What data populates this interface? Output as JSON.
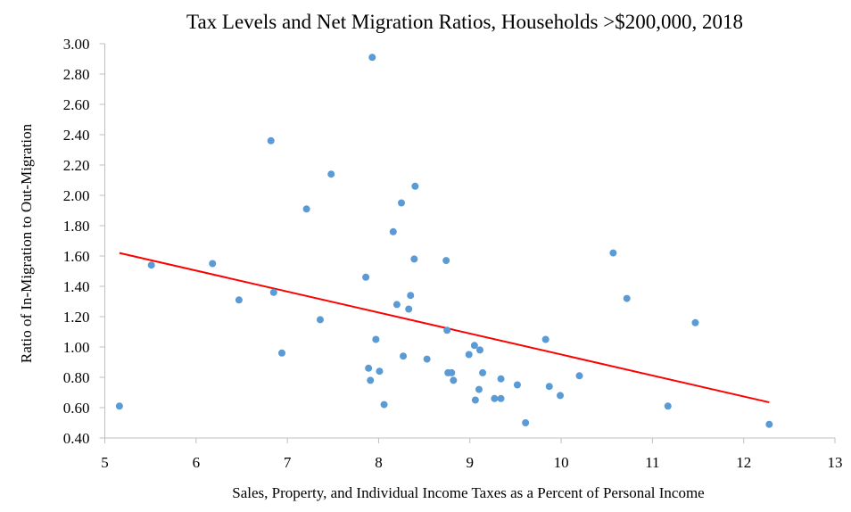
{
  "chart_data": {
    "type": "scatter",
    "title": "Tax Levels and Net Migration Ratios, Households >$200,000, 2018",
    "xlabel": "Sales, Property, and Individual Income Taxes as a Percent of Personal Income",
    "ylabel": "Ratio of In-Migration to Out-Migration",
    "xlim": [
      5,
      13
    ],
    "ylim": [
      0.4,
      3.0
    ],
    "x_ticks": [
      "5",
      "6",
      "7",
      "8",
      "9",
      "10",
      "11",
      "12",
      "13"
    ],
    "y_ticks": [
      "0.40",
      "0.60",
      "0.80",
      "1.00",
      "1.20",
      "1.40",
      "1.60",
      "1.80",
      "2.00",
      "2.20",
      "2.40",
      "2.60",
      "2.80",
      "3.00"
    ],
    "grid": false,
    "legend": "none",
    "colors": {
      "points": "#5B9BD5",
      "trendline": "#FF0000",
      "axis": "#BFBFBF"
    },
    "points": [
      {
        "x": 5.16,
        "y": 0.61
      },
      {
        "x": 5.51,
        "y": 1.54
      },
      {
        "x": 6.18,
        "y": 1.55
      },
      {
        "x": 6.47,
        "y": 1.31
      },
      {
        "x": 6.82,
        "y": 2.36
      },
      {
        "x": 6.85,
        "y": 1.36
      },
      {
        "x": 6.94,
        "y": 0.96
      },
      {
        "x": 7.21,
        "y": 1.91
      },
      {
        "x": 7.36,
        "y": 1.18
      },
      {
        "x": 7.48,
        "y": 2.14
      },
      {
        "x": 7.86,
        "y": 1.46
      },
      {
        "x": 7.89,
        "y": 0.86
      },
      {
        "x": 7.91,
        "y": 0.78
      },
      {
        "x": 7.93,
        "y": 2.91
      },
      {
        "x": 7.97,
        "y": 1.05
      },
      {
        "x": 8.01,
        "y": 0.84
      },
      {
        "x": 8.06,
        "y": 0.62
      },
      {
        "x": 8.16,
        "y": 1.76
      },
      {
        "x": 8.2,
        "y": 1.28
      },
      {
        "x": 8.25,
        "y": 1.95
      },
      {
        "x": 8.27,
        "y": 0.94
      },
      {
        "x": 8.33,
        "y": 1.25
      },
      {
        "x": 8.35,
        "y": 1.34
      },
      {
        "x": 8.39,
        "y": 1.58
      },
      {
        "x": 8.4,
        "y": 2.06
      },
      {
        "x": 8.53,
        "y": 0.92
      },
      {
        "x": 8.74,
        "y": 1.57
      },
      {
        "x": 8.75,
        "y": 1.11
      },
      {
        "x": 8.76,
        "y": 0.83
      },
      {
        "x": 8.8,
        "y": 0.83
      },
      {
        "x": 8.82,
        "y": 0.78
      },
      {
        "x": 8.99,
        "y": 0.95
      },
      {
        "x": 9.05,
        "y": 1.01
      },
      {
        "x": 9.06,
        "y": 0.65
      },
      {
        "x": 9.1,
        "y": 0.72
      },
      {
        "x": 9.11,
        "y": 0.98
      },
      {
        "x": 9.14,
        "y": 0.83
      },
      {
        "x": 9.27,
        "y": 0.66
      },
      {
        "x": 9.34,
        "y": 0.66
      },
      {
        "x": 9.34,
        "y": 0.79
      },
      {
        "x": 9.52,
        "y": 0.75
      },
      {
        "x": 9.61,
        "y": 0.5
      },
      {
        "x": 9.83,
        "y": 1.05
      },
      {
        "x": 9.87,
        "y": 0.74
      },
      {
        "x": 9.99,
        "y": 0.68
      },
      {
        "x": 10.2,
        "y": 0.81
      },
      {
        "x": 10.57,
        "y": 1.62
      },
      {
        "x": 10.72,
        "y": 1.32
      },
      {
        "x": 11.17,
        "y": 0.61
      },
      {
        "x": 11.47,
        "y": 1.16
      },
      {
        "x": 12.28,
        "y": 0.49
      }
    ],
    "trendline": {
      "type": "linear",
      "start": {
        "x": 5.16,
        "y": 1.62
      },
      "end": {
        "x": 12.28,
        "y": 0.635
      }
    }
  }
}
